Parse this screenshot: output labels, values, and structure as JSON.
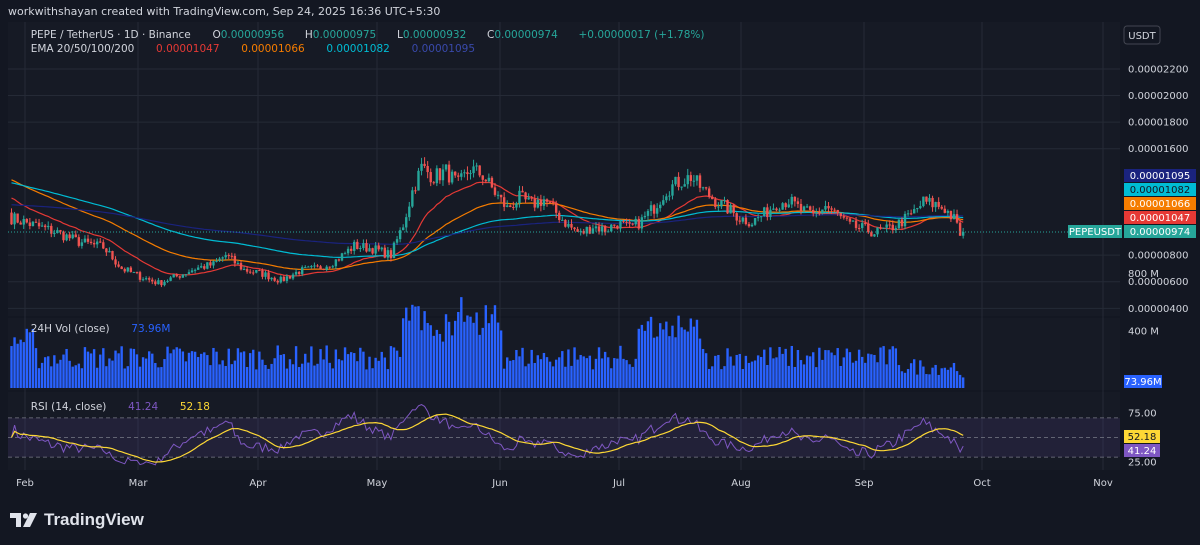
{
  "credit": "workwithshayan created with TradingView.com, Sep 24, 2025 16:36 UTC+5:30",
  "brand": "TradingView",
  "currency_button": "USDT",
  "colors": {
    "bg": "#131722",
    "panel": "#161a25",
    "up": "#26a69a",
    "down": "#ef5350",
    "ema20": "#e53935",
    "ema50": "#f57c00",
    "ema100": "#00bcd4",
    "ema200": "#1a237e",
    "volume": "#2962ff",
    "rsi": "#7e57c2",
    "rsi_ma": "#fdd835",
    "grid": "#252a36"
  },
  "legend": {
    "symbol": "PEPE / TetherUS · 1D · Binance",
    "o_label": "O",
    "o": "0.00000956",
    "h_label": "H",
    "h": "0.00000975",
    "l_label": "L",
    "l": "0.00000932",
    "c_label": "C",
    "c": "0.00000974",
    "change": "+0.00000017 (+1.78%)",
    "ema_label": "EMA 20/50/100/200",
    "ema20": "0.00001047",
    "ema50": "0.00001066",
    "ema100": "0.00001082",
    "ema200": "0.00001095"
  },
  "vol_legend": {
    "label": "24H Vol (close)",
    "value": "73.96M"
  },
  "rsi_legend": {
    "label": "RSI (14, close)",
    "rsi": "41.24",
    "ma": "52.18"
  },
  "price_badges": {
    "ema200": "0.00001095",
    "ema100": "0.00001082",
    "ema50": "0.00001066",
    "ema20": "0.00001047",
    "symbol": "PEPEUSDT",
    "last": "0.00000974"
  },
  "volume_badge": "73.96M",
  "rsi_badges": {
    "ma": "52.18",
    "rsi": "41.24"
  },
  "chart_data": {
    "type": "candlestick",
    "symbol": "PEPEUSDT",
    "timeframe": "1D",
    "price_axis": {
      "ticks": [
        "0.00002200",
        "0.00002000",
        "0.00001800",
        "0.00001600",
        "0.00000800",
        "0.00000600",
        "0.00000400"
      ],
      "range": [
        3.3e-06,
        2.32e-05
      ]
    },
    "x_axis": {
      "ticks": [
        "Feb",
        "Mar",
        "Apr",
        "May",
        "Jun",
        "Jul",
        "Aug",
        "Sep",
        "Oct",
        "Nov"
      ]
    },
    "candles_note": "daily OHLC from Jan 27 to Sep 24, 2025 (values read approximately from chart)",
    "anchors": [
      {
        "d": 0,
        "p": 10.8
      },
      {
        "d": 8,
        "p": 10.2
      },
      {
        "d": 15,
        "p": 9.7
      },
      {
        "d": 22,
        "p": 9.0
      },
      {
        "d": 30,
        "p": 8.6
      },
      {
        "d": 36,
        "p": 7.0
      },
      {
        "d": 42,
        "p": 6.4
      },
      {
        "d": 48,
        "p": 5.9
      },
      {
        "d": 54,
        "p": 6.4
      },
      {
        "d": 60,
        "p": 7.0
      },
      {
        "d": 66,
        "p": 7.3
      },
      {
        "d": 70,
        "p": 8.0
      },
      {
        "d": 76,
        "p": 6.9
      },
      {
        "d": 82,
        "p": 6.6
      },
      {
        "d": 88,
        "p": 6.1
      },
      {
        "d": 94,
        "p": 6.8
      },
      {
        "d": 100,
        "p": 7.0
      },
      {
        "d": 106,
        "p": 7.6
      },
      {
        "d": 112,
        "p": 8.7
      },
      {
        "d": 118,
        "p": 8.5
      },
      {
        "d": 124,
        "p": 8.0
      },
      {
        "d": 128,
        "p": 10.3
      },
      {
        "d": 131,
        "p": 12.8
      },
      {
        "d": 134,
        "p": 14.6
      },
      {
        "d": 138,
        "p": 13.9
      },
      {
        "d": 142,
        "p": 14.3
      },
      {
        "d": 146,
        "p": 13.3
      },
      {
        "d": 150,
        "p": 14.5
      },
      {
        "d": 154,
        "p": 14.0
      },
      {
        "d": 158,
        "p": 12.7
      },
      {
        "d": 162,
        "p": 11.5
      },
      {
        "d": 166,
        "p": 12.3
      },
      {
        "d": 170,
        "p": 11.8
      },
      {
        "d": 174,
        "p": 12.2
      },
      {
        "d": 178,
        "p": 11.2
      },
      {
        "d": 182,
        "p": 10.2
      },
      {
        "d": 186,
        "p": 9.6
      },
      {
        "d": 190,
        "p": 10.2
      },
      {
        "d": 194,
        "p": 9.9
      },
      {
        "d": 198,
        "p": 10.4
      },
      {
        "d": 202,
        "p": 10.0
      },
      {
        "d": 206,
        "p": 10.6
      },
      {
        "d": 210,
        "p": 11.6
      },
      {
        "d": 214,
        "p": 12.9
      },
      {
        "d": 218,
        "p": 13.5
      },
      {
        "d": 222,
        "p": 13.9
      },
      {
        "d": 226,
        "p": 12.9
      },
      {
        "d": 230,
        "p": 12.1
      },
      {
        "d": 234,
        "p": 11.5
      },
      {
        "d": 238,
        "p": 10.8
      },
      {
        "d": 242,
        "p": 10.5
      },
      {
        "d": 246,
        "p": 11.1
      },
      {
        "d": 250,
        "p": 11.9
      },
      {
        "d": 254,
        "p": 12.1
      },
      {
        "d": 258,
        "p": 11.4
      },
      {
        "d": 262,
        "p": 11.0
      },
      {
        "d": 266,
        "p": 11.7
      },
      {
        "d": 270,
        "p": 11.0
      },
      {
        "d": 274,
        "p": 10.2
      },
      {
        "d": 278,
        "p": 10.0
      },
      {
        "d": 282,
        "p": 9.7
      },
      {
        "d": 286,
        "p": 9.9
      },
      {
        "d": 290,
        "p": 10.4
      },
      {
        "d": 294,
        "p": 11.0
      },
      {
        "d": 298,
        "p": 12.0
      },
      {
        "d": 302,
        "p": 11.8
      },
      {
        "d": 305,
        "p": 11.5
      },
      {
        "d": 308,
        "p": 10.7
      },
      {
        "d": 310,
        "p": 9.6
      },
      {
        "d": 311,
        "p": 9.74
      }
    ],
    "ema": [
      {
        "name": "EMA 20",
        "last": 1.047e-05
      },
      {
        "name": "EMA 50",
        "last": 1.066e-05
      },
      {
        "name": "EMA 100",
        "last": 1.082e-05
      },
      {
        "name": "EMA 200",
        "last": 1.095e-05
      }
    ],
    "volume_axis": {
      "ticks": [
        "800 M",
        "400 M"
      ],
      "last": "73.96M"
    },
    "rsi_axis": {
      "ticks": [
        "75.00",
        "25.00"
      ],
      "upper": 70,
      "lower": 30,
      "rsi_last": 41.24,
      "ma_last": 52.18
    }
  }
}
